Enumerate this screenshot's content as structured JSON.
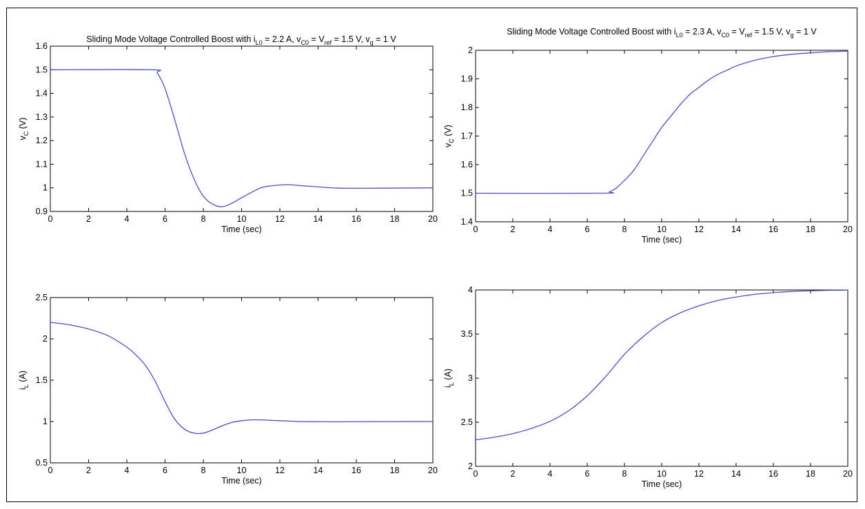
{
  "colors": {
    "line": "#4a4fc8",
    "axis": "#000000",
    "background": "#ffffff"
  },
  "chart_data": [
    {
      "id": "tl",
      "type": "line",
      "title": {
        "main": "Sliding Mode Voltage Controlled Boost with i",
        "sub1": "L0",
        "mid1": " = 2.2 A, v",
        "sub2": "C0",
        "mid2": " = V",
        "sub3": "ref",
        "mid3": " = 1.5 V, v",
        "sub4": "g",
        "end": " = 1 V"
      },
      "xlabel": "Time (sec)",
      "ylabel": {
        "main": "v",
        "sub": "C",
        "unit": " (V)"
      },
      "xlim": [
        0,
        20
      ],
      "ylim": [
        0.9,
        1.6
      ],
      "xticks": [
        0,
        2,
        4,
        6,
        8,
        10,
        12,
        14,
        16,
        18,
        20
      ],
      "yticks": [
        0.9,
        1.0,
        1.1,
        1.2,
        1.3,
        1.4,
        1.5,
        1.6
      ],
      "ytick_labels": [
        "0.9",
        "1",
        "1.1",
        "1.2",
        "1.3",
        "1.4",
        "1.5",
        "1.6"
      ],
      "grid": false,
      "series": [
        {
          "x": [
            0,
            5.3,
            5.6,
            6,
            6.5,
            7,
            7.5,
            8,
            8.5,
            9,
            9.5,
            10,
            10.5,
            11,
            11.5,
            12,
            12.5,
            13,
            14,
            15,
            16,
            18,
            20
          ],
          "y": [
            1.5,
            1.5,
            1.485,
            1.42,
            1.29,
            1.15,
            1.04,
            0.965,
            0.93,
            0.92,
            0.935,
            0.958,
            0.98,
            1.0,
            1.008,
            1.012,
            1.013,
            1.01,
            1.004,
            0.999,
            0.998,
            0.999,
            1.0
          ]
        }
      ]
    },
    {
      "id": "bl",
      "type": "line",
      "title": null,
      "xlabel": "Time (sec)",
      "ylabel": {
        "main": "i",
        "sub": "L",
        "unit": " (A)"
      },
      "xlim": [
        0,
        20
      ],
      "ylim": [
        0.5,
        2.5
      ],
      "xticks": [
        0,
        2,
        4,
        6,
        8,
        10,
        12,
        14,
        16,
        18,
        20
      ],
      "yticks": [
        0.5,
        1.0,
        1.5,
        2.0,
        2.5
      ],
      "ytick_labels": [
        "0.5",
        "1",
        "1.5",
        "2",
        "2.5"
      ],
      "grid": false,
      "series": [
        {
          "x": [
            0,
            1,
            2,
            3,
            4,
            4.5,
            5,
            5.5,
            6,
            6.5,
            7,
            7.5,
            8,
            8.5,
            9,
            9.5,
            10,
            10.5,
            11,
            11.5,
            12,
            13,
            14,
            15,
            16,
            18,
            20
          ],
          "y": [
            2.2,
            2.17,
            2.12,
            2.04,
            1.9,
            1.8,
            1.67,
            1.48,
            1.24,
            1.03,
            0.91,
            0.86,
            0.86,
            0.9,
            0.95,
            0.99,
            1.01,
            1.02,
            1.02,
            1.015,
            1.01,
            1.0,
            0.998,
            0.997,
            0.998,
            0.999,
            1.0
          ]
        }
      ]
    },
    {
      "id": "tr",
      "type": "line",
      "title": {
        "main": "Sliding Mode Voltage Controlled Boost with i",
        "sub1": "L0",
        "mid1": " = 2.3 A, v",
        "sub2": "C0",
        "mid2": " = V",
        "sub3": "ref",
        "mid3": " = 1.5 V, v",
        "sub4": "g",
        "end": " = 1 V"
      },
      "xlabel": "Time (sec)",
      "ylabel": {
        "main": "v",
        "sub": "C",
        "unit": " (V)"
      },
      "xlim": [
        0,
        20
      ],
      "ylim": [
        1.4,
        2.0
      ],
      "xticks": [
        0,
        2,
        4,
        6,
        8,
        10,
        12,
        14,
        16,
        18,
        20
      ],
      "yticks": [
        1.4,
        1.5,
        1.6,
        1.7,
        1.8,
        1.9,
        2.0
      ],
      "ytick_labels": [
        "1.4",
        "1.5",
        "1.6",
        "1.7",
        "1.8",
        "1.9",
        "2"
      ],
      "grid": false,
      "series": [
        {
          "x": [
            0,
            6.8,
            7.2,
            7.6,
            8,
            8.5,
            9,
            9.5,
            10,
            10.5,
            11,
            11.5,
            12,
            12.5,
            13,
            13.5,
            14,
            15,
            16,
            17,
            18,
            19,
            20
          ],
          "y": [
            1.5,
            1.5,
            1.505,
            1.52,
            1.545,
            1.58,
            1.63,
            1.68,
            1.73,
            1.77,
            1.81,
            1.845,
            1.87,
            1.895,
            1.915,
            1.93,
            1.945,
            1.965,
            1.978,
            1.986,
            1.991,
            1.995,
            1.997
          ]
        }
      ]
    },
    {
      "id": "br",
      "type": "line",
      "title": null,
      "xlabel": "Time (sec)",
      "ylabel": {
        "main": "i",
        "sub": "L",
        "unit": " (A)"
      },
      "xlim": [
        0,
        20
      ],
      "ylim": [
        2.0,
        4.0
      ],
      "xticks": [
        0,
        2,
        4,
        6,
        8,
        10,
        12,
        14,
        16,
        18,
        20
      ],
      "yticks": [
        2.0,
        2.5,
        3.0,
        3.5,
        4.0
      ],
      "ytick_labels": [
        "2",
        "2.5",
        "3",
        "3.5",
        "4"
      ],
      "grid": false,
      "series": [
        {
          "x": [
            0,
            1,
            2,
            3,
            4,
            5,
            6,
            7,
            8,
            9,
            10,
            11,
            12,
            13,
            14,
            15,
            16,
            17,
            18,
            19,
            20
          ],
          "y": [
            2.3,
            2.33,
            2.37,
            2.43,
            2.51,
            2.63,
            2.8,
            3.02,
            3.27,
            3.47,
            3.63,
            3.74,
            3.82,
            3.88,
            3.92,
            3.95,
            3.97,
            3.983,
            3.99,
            3.996,
            3.998
          ]
        }
      ]
    }
  ]
}
